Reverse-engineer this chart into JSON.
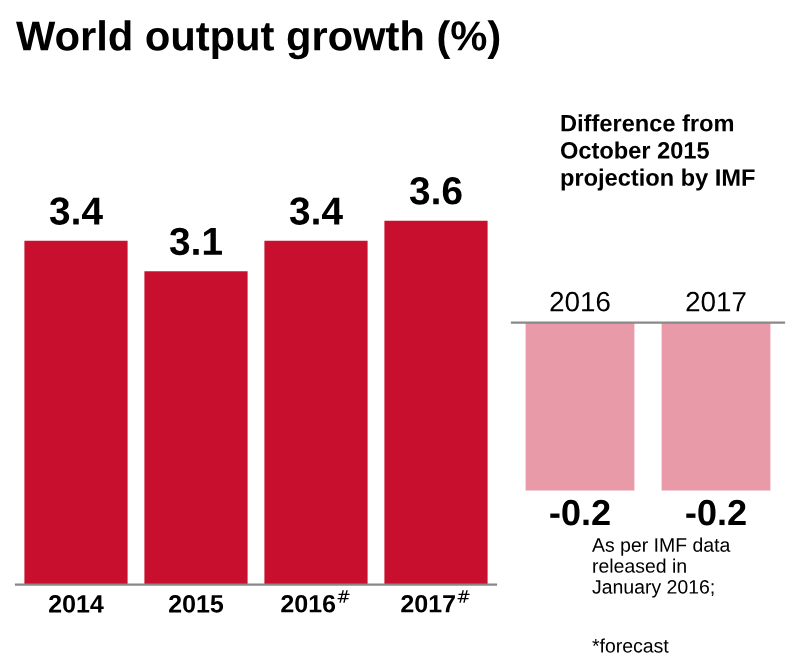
{
  "chart_data": [
    {
      "type": "bar",
      "title": "World output growth (%)",
      "categories": [
        "2014",
        "2015",
        "2016$^{#}$",
        "2017$^{#}$"
      ],
      "values": [
        3.4,
        3.1,
        3.4,
        3.6
      ],
      "color": "#c8102e",
      "data_labels": true,
      "grid": false
    },
    {
      "type": "bar",
      "title": "Difference from\nOctober 2015\nprojection by IMF",
      "categories": [
        "2016",
        "2017"
      ],
      "values": [
        -0.2,
        -0.2
      ],
      "color": "#e89aa8",
      "data_labels": true,
      "grid": false,
      "annotations": [
        "As per IMF data\nreleased in\nJanuary 2016;",
        "*forecast"
      ]
    }
  ]
}
